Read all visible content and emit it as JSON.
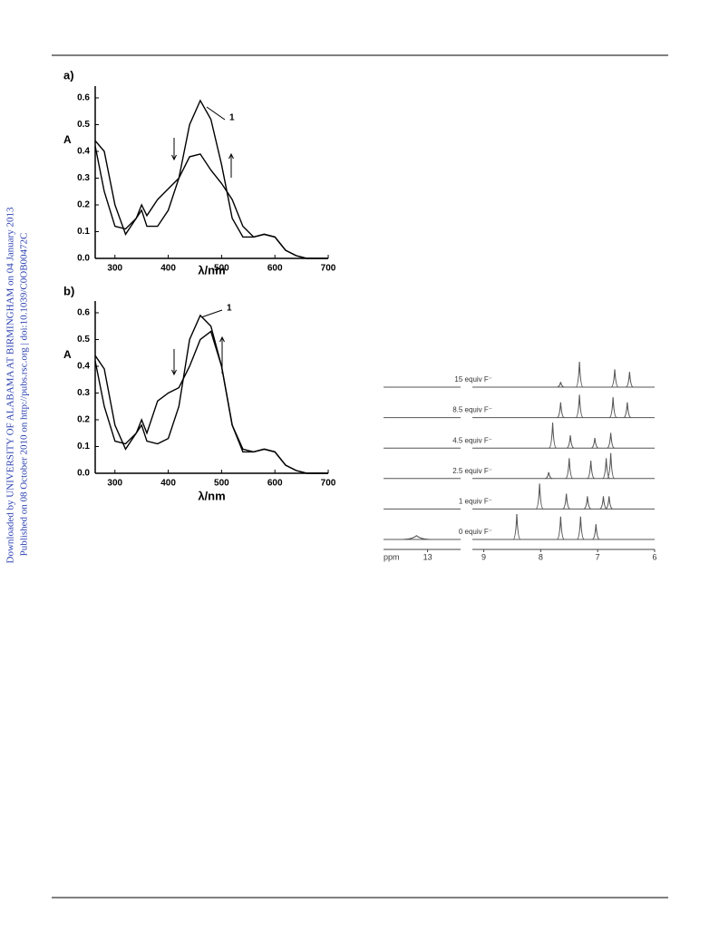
{
  "sidebar": [
    "Downloaded by UNIVERSITY OF ALABAMA AT BIRMINGHAM on 04 January 2013",
    "Published on 08 October 2010 on http://pubs.rsc.org | doi:10.1039/C0OB00472C"
  ],
  "chart_data": [
    {
      "type": "line",
      "panel_label": "a)",
      "ylabel": "A",
      "xlabel": "λ/nm",
      "annotation": "1",
      "x": [
        263,
        280,
        300,
        320,
        340,
        350,
        360,
        380,
        400,
        420,
        440,
        460,
        480,
        500,
        520,
        540,
        560,
        580,
        600,
        620,
        640,
        660,
        700
      ],
      "series": [
        {
          "color": "#000000",
          "values": [
            0.42,
            0.25,
            0.12,
            0.11,
            0.15,
            0.18,
            0.12,
            0.12,
            0.18,
            0.3,
            0.5,
            0.59,
            0.52,
            0.35,
            0.15,
            0.08,
            0.08,
            0.09,
            0.08,
            0.03,
            0.01,
            0,
            0
          ]
        },
        {
          "color": "#000000",
          "values": [
            0.44,
            0.4,
            0.2,
            0.09,
            0.15,
            0.2,
            0.16,
            0.22,
            0.26,
            0.3,
            0.38,
            0.39,
            0.33,
            0.28,
            0.22,
            0.12,
            0.08,
            0.09,
            0.08,
            0.03,
            0.01,
            0,
            0
          ]
        }
      ],
      "xlim": [
        263,
        700
      ],
      "ylim": [
        0,
        0.644
      ],
      "xticks": [
        300,
        400,
        500,
        600,
        700
      ],
      "yticks": [
        {
          "value": 0,
          "label": "0.0"
        },
        0.1,
        0.2,
        0.3,
        0.4,
        0.5,
        0.6
      ]
    },
    {
      "type": "line",
      "panel_label": "b)",
      "ylabel": "A",
      "xlabel": "λ/nm",
      "annotation": "1",
      "x": [
        263,
        280,
        300,
        320,
        340,
        350,
        360,
        380,
        400,
        420,
        440,
        460,
        480,
        500,
        520,
        540,
        560,
        580,
        600,
        620,
        640,
        660,
        700
      ],
      "series": [
        {
          "color": "#000000",
          "values": [
            0.42,
            0.25,
            0.12,
            0.11,
            0.15,
            0.18,
            0.12,
            0.11,
            0.13,
            0.25,
            0.5,
            0.59,
            0.55,
            0.4,
            0.18,
            0.08,
            0.08,
            0.09,
            0.08,
            0.03,
            0.01,
            0,
            0
          ]
        },
        {
          "color": "#000000",
          "values": [
            0.44,
            0.39,
            0.18,
            0.09,
            0.15,
            0.2,
            0.15,
            0.27,
            0.3,
            0.32,
            0.4,
            0.5,
            0.53,
            0.4,
            0.18,
            0.09,
            0.08,
            0.09,
            0.08,
            0.03,
            0.01,
            0,
            0
          ]
        }
      ],
      "xlim": [
        263,
        700
      ],
      "ylim": [
        0,
        0.644
      ],
      "xticks": [
        300,
        400,
        500,
        600,
        700
      ],
      "yticks": [
        {
          "value": 0,
          "label": "0.0"
        },
        0.1,
        0.2,
        0.3,
        0.4,
        0.5,
        0.6
      ]
    },
    {
      "type": "nmr",
      "xlabel": "ppm",
      "xlim": [
        13.8,
        6
      ],
      "axis_break": [
        12.4,
        9.2
      ],
      "xticks": [
        13,
        9,
        8,
        7,
        6
      ],
      "series": [
        {
          "name": "15 equiv F⁻",
          "color": "#555555",
          "peaks": [
            7.65,
            7.32,
            6.7,
            6.44
          ],
          "heights": [
            0.2,
            1,
            0.7,
            0.6
          ]
        },
        {
          "name": "8.5 equiv F⁻",
          "color": "#555555",
          "peaks": [
            7.65,
            7.32,
            6.73,
            6.48
          ],
          "heights": [
            0.6,
            0.9,
            0.8,
            0.6
          ]
        },
        {
          "name": "4.5 equiv F⁻",
          "color": "#555555",
          "peaks": [
            7.79,
            7.48,
            7.05,
            6.77
          ],
          "heights": [
            1,
            0.5,
            0.4,
            0.6
          ]
        },
        {
          "name": "2.5 equiv F⁻",
          "color": "#555555",
          "peaks": [
            7.86,
            7.5,
            7.12,
            6.85,
            6.77
          ],
          "heights": [
            0.25,
            0.8,
            0.7,
            0.8,
            1
          ]
        },
        {
          "name": "1 equiv F⁻",
          "color": "#555555",
          "peaks": [
            8.02,
            7.55,
            7.18,
            6.9,
            6.8
          ],
          "heights": [
            1,
            0.6,
            0.5,
            0.5,
            0.5
          ]
        },
        {
          "name": "0 equiv F⁻",
          "color": "#555555",
          "peaks": [
            13.2,
            8.42,
            7.65,
            7.3,
            7.03
          ],
          "heights": [
            0.15,
            1,
            0.9,
            0.9,
            0.6
          ]
        }
      ]
    }
  ]
}
